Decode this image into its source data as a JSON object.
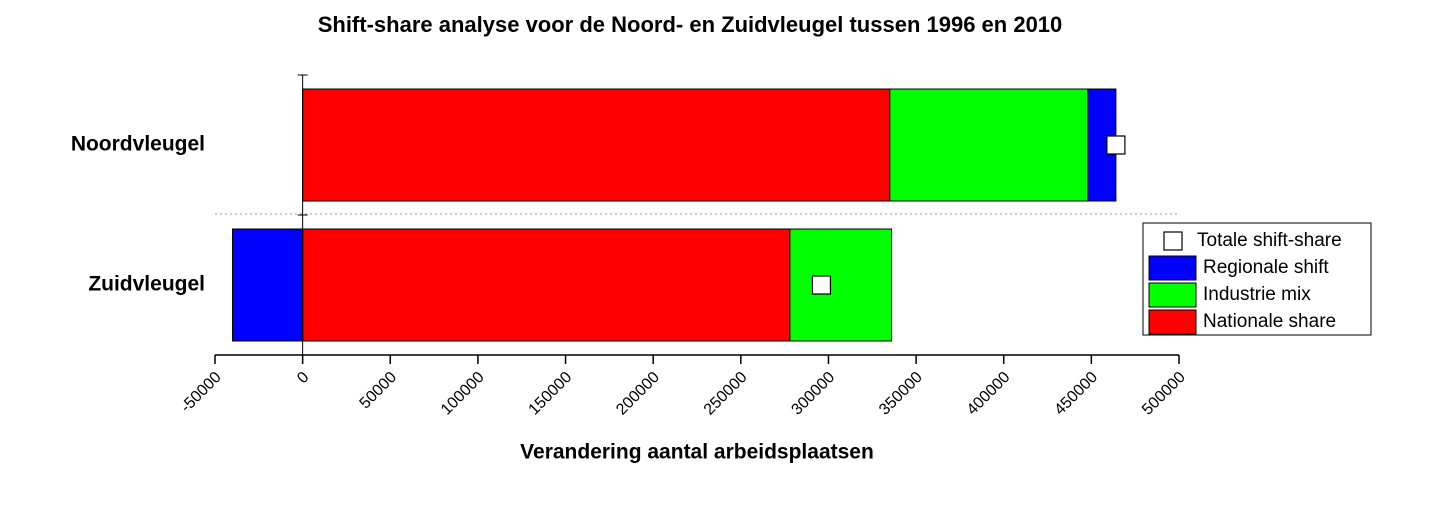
{
  "chart_data": {
    "type": "stacked-bar-horizontal",
    "title": "Shift-share analyse voor de Noord- en Zuidvleugel tussen 1996 en 2010",
    "x_label": "Verandering aantal arbeidsplaatsen",
    "categories": [
      "Noordvleugel",
      "Zuidvleugel"
    ],
    "series": [
      {
        "name": "Nationale share",
        "color": "#ff0000",
        "values": [
          335000,
          278000
        ]
      },
      {
        "name": "Industrie mix",
        "color": "#00ff00",
        "values": [
          113000,
          58000
        ]
      },
      {
        "name": "Regionale shift",
        "color": "#0000ff",
        "values": [
          16000,
          -40000
        ]
      }
    ],
    "markers": {
      "name": "Totale shift-share",
      "color": "#ffffff",
      "values": [
        464000,
        296000
      ]
    },
    "xlim": [
      -50000,
      500000
    ],
    "xticks": [
      -50000,
      0,
      50000,
      100000,
      150000,
      200000,
      250000,
      300000,
      350000,
      400000,
      450000,
      500000
    ]
  }
}
